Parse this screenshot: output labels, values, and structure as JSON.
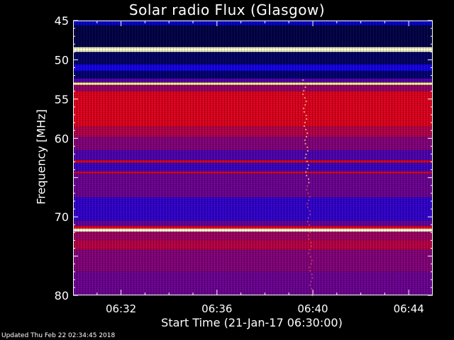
{
  "chart_data": {
    "type": "heatmap",
    "title": "Solar radio Flux (Glasgow)",
    "xlabel": "Start Time (21-Jan-17 06:30:00)",
    "ylabel": "Frequency [MHz]",
    "x_ticks": [
      "06:32",
      "06:36",
      "06:40",
      "06:44"
    ],
    "x_tick_minutes": [
      2,
      6,
      10,
      14
    ],
    "x_range_minutes": [
      0,
      15
    ],
    "y_ticks": [
      45,
      50,
      55,
      60,
      65,
      70,
      75,
      80
    ],
    "y_tick_labels": [
      "45",
      "50",
      "55",
      "60",
      "",
      "70",
      "",
      "80"
    ],
    "y_range_mhz": [
      45,
      80
    ],
    "bands": [
      {
        "from": 45.0,
        "to": 45.6,
        "level": 0.15
      },
      {
        "from": 45.6,
        "to": 48.4,
        "level": 0.05
      },
      {
        "from": 48.4,
        "to": 49.0,
        "level": 0.97
      },
      {
        "from": 49.0,
        "to": 50.6,
        "level": 0.07
      },
      {
        "from": 50.6,
        "to": 51.4,
        "level": 0.22
      },
      {
        "from": 51.4,
        "to": 52.4,
        "level": 0.08
      },
      {
        "from": 52.4,
        "to": 52.9,
        "level": 0.35
      },
      {
        "from": 52.9,
        "to": 53.2,
        "level": 0.92
      },
      {
        "from": 53.2,
        "to": 54.0,
        "level": 0.48
      },
      {
        "from": 54.0,
        "to": 58.5,
        "level": 0.64
      },
      {
        "from": 58.5,
        "to": 59.8,
        "level": 0.55
      },
      {
        "from": 59.8,
        "to": 61.5,
        "level": 0.45
      },
      {
        "from": 61.5,
        "to": 62.8,
        "level": 0.34
      },
      {
        "from": 62.8,
        "to": 63.1,
        "level": 0.66
      },
      {
        "from": 63.1,
        "to": 64.2,
        "level": 0.3
      },
      {
        "from": 64.2,
        "to": 64.5,
        "level": 0.6
      },
      {
        "from": 64.5,
        "to": 67.5,
        "level": 0.4
      },
      {
        "from": 67.5,
        "to": 70.5,
        "level": 0.28
      },
      {
        "from": 70.5,
        "to": 71.2,
        "level": 0.38
      },
      {
        "from": 71.2,
        "to": 71.5,
        "level": 0.7
      },
      {
        "from": 71.5,
        "to": 71.9,
        "level": 0.98
      },
      {
        "from": 71.9,
        "to": 73.0,
        "level": 0.5
      },
      {
        "from": 73.0,
        "to": 74.2,
        "level": 0.56
      },
      {
        "from": 74.2,
        "to": 77.0,
        "level": 0.45
      },
      {
        "from": 77.0,
        "to": 80.0,
        "level": 0.4
      }
    ],
    "colorscale": [
      "#000000",
      "#0000ff",
      "#ff0000",
      "#ffff80",
      "#ffffff"
    ],
    "grid": false,
    "legend": "none"
  },
  "footer": "Updated Thu Feb 22 02:34:45 2018"
}
